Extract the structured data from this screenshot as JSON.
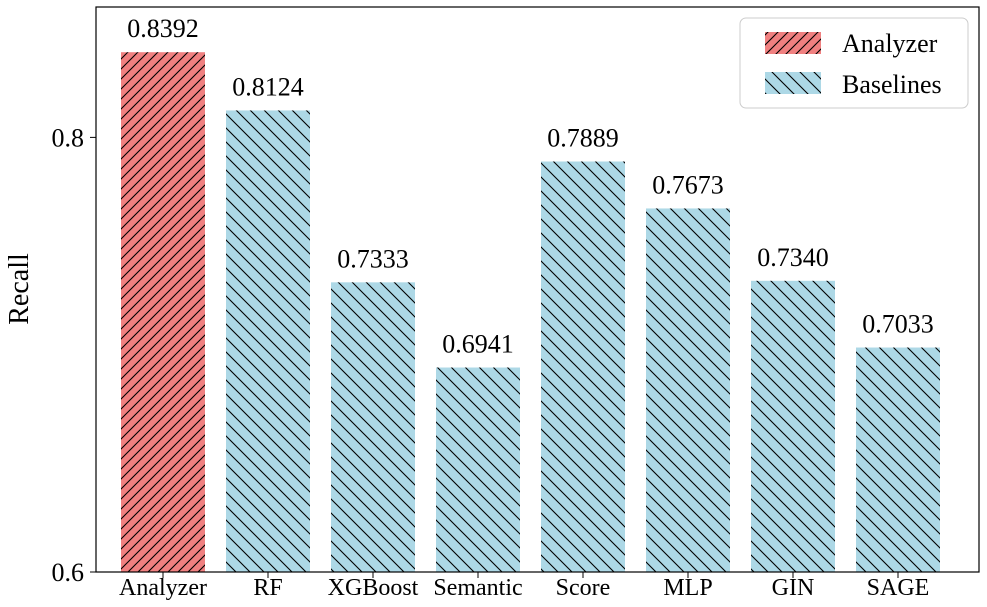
{
  "chart_data": {
    "type": "bar",
    "title": "",
    "xlabel": "",
    "ylabel": "Recall",
    "ylim": [
      0.6,
      0.86
    ],
    "yticks": [
      {
        "value": 0.6,
        "label": "0.6"
      },
      {
        "value": 0.8,
        "label": "0.8"
      }
    ],
    "categories": [
      "Analyzer",
      "RF",
      "XGBoost",
      "Semantic",
      "Score",
      "MLP",
      "GIN",
      "SAGE"
    ],
    "values": [
      0.8392,
      0.8124,
      0.7333,
      0.6941,
      0.7889,
      0.7673,
      0.734,
      0.7033
    ],
    "value_labels": [
      "0.8392",
      "0.8124",
      "0.7333",
      "0.6941",
      "0.7889",
      "0.7673",
      "0.7340",
      "0.7033"
    ],
    "bar_group": [
      "Analyzer",
      "Baselines",
      "Baselines",
      "Baselines",
      "Baselines",
      "Baselines",
      "Baselines",
      "Baselines"
    ],
    "series": [
      {
        "name": "Analyzer",
        "color": "#F08080",
        "hatch": "forward-diagonal"
      },
      {
        "name": "Baselines",
        "color": "#ADD8E6",
        "hatch": "back-diagonal"
      }
    ],
    "legend_position": "top-right",
    "grid": false
  }
}
